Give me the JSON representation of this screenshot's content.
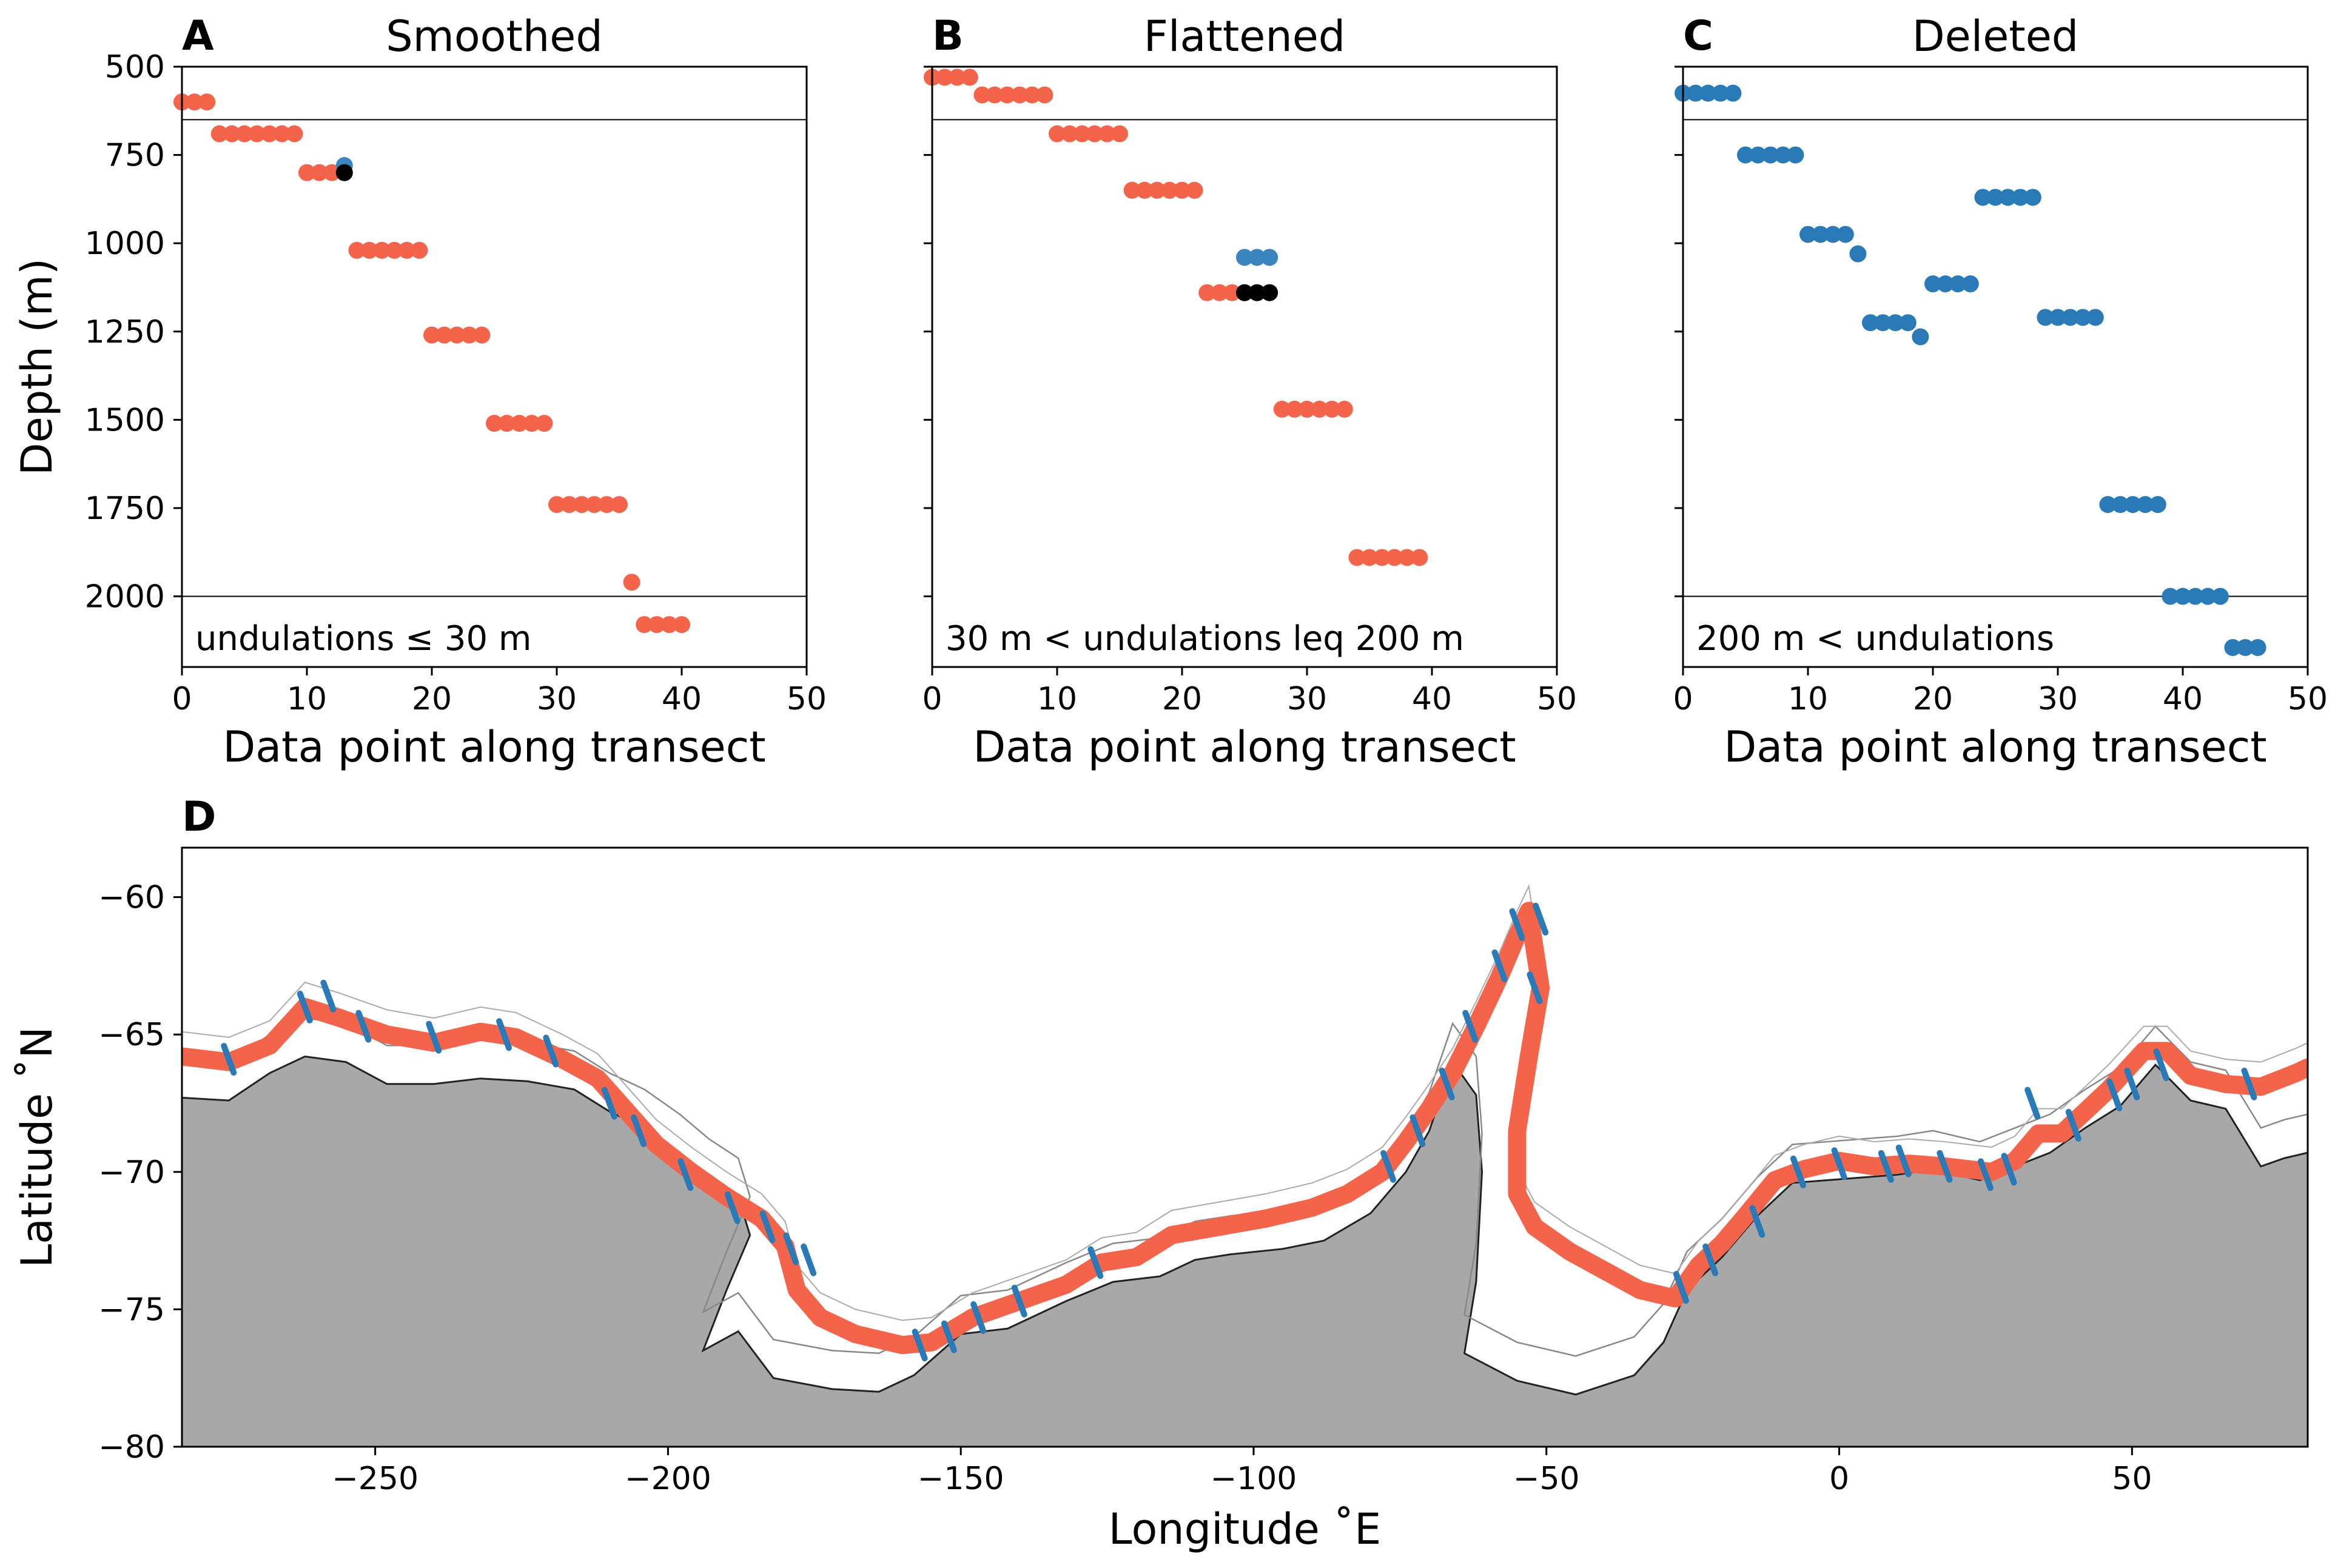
{
  "panels": [
    {
      "letter": "A",
      "title": "Smoothed",
      "annotation": "undulations ≤  30 m",
      "xlabel": "Data point along transect",
      "ylabel": "Depth (m)",
      "xlim": [
        0,
        50
      ],
      "ylim": [
        2200,
        500
      ],
      "xticks": [
        0,
        10,
        20,
        30,
        40,
        50
      ],
      "yticks": [
        500,
        750,
        1000,
        1250,
        1500,
        1750,
        2000
      ],
      "hlines": [
        650,
        2000
      ],
      "series": [
        {
          "color": "#f4644b",
          "points": [
            [
              0,
              600
            ],
            [
              1,
              600
            ],
            [
              2,
              600
            ],
            [
              3,
              690
            ],
            [
              4,
              690
            ],
            [
              5,
              690
            ],
            [
              6,
              690
            ],
            [
              7,
              690
            ],
            [
              8,
              690
            ],
            [
              9,
              690
            ],
            [
              10,
              800
            ],
            [
              11,
              800
            ],
            [
              12,
              800
            ],
            [
              13,
              800
            ],
            [
              14,
              1020
            ],
            [
              15,
              1020
            ],
            [
              16,
              1020
            ],
            [
              17,
              1020
            ],
            [
              18,
              1020
            ],
            [
              19,
              1020
            ],
            [
              20,
              1260
            ],
            [
              21,
              1260
            ],
            [
              22,
              1260
            ],
            [
              23,
              1260
            ],
            [
              24,
              1260
            ],
            [
              25,
              1510
            ],
            [
              26,
              1510
            ],
            [
              27,
              1510
            ],
            [
              28,
              1510
            ],
            [
              29,
              1510
            ],
            [
              30,
              1740
            ],
            [
              31,
              1740
            ],
            [
              32,
              1740
            ],
            [
              33,
              1740
            ],
            [
              34,
              1740
            ],
            [
              35,
              1740
            ],
            [
              36,
              1960
            ],
            [
              37,
              2080
            ],
            [
              38,
              2080
            ],
            [
              39,
              2080
            ],
            [
              40,
              2080
            ]
          ]
        },
        {
          "color": "#3a85c0",
          "points": [
            [
              13,
              780
            ]
          ]
        },
        {
          "color": "#000000",
          "points": [
            [
              13,
              800
            ]
          ]
        }
      ]
    },
    {
      "letter": "B",
      "title": "Flattened",
      "annotation": "30 m < undulations leq 200 m",
      "xlabel": "Data point along transect",
      "ylabel": "",
      "xlim": [
        0,
        50
      ],
      "ylim": [
        2200,
        500
      ],
      "xticks": [
        0,
        10,
        20,
        30,
        40,
        50
      ],
      "yticks": [
        500,
        750,
        1000,
        1250,
        1500,
        1750,
        2000
      ],
      "hlines": [
        650
      ],
      "series": [
        {
          "color": "#f4644b",
          "points": [
            [
              0,
              530
            ],
            [
              1,
              530
            ],
            [
              2,
              530
            ],
            [
              3,
              530
            ],
            [
              4,
              580
            ],
            [
              5,
              580
            ],
            [
              6,
              580
            ],
            [
              7,
              580
            ],
            [
              8,
              580
            ],
            [
              9,
              580
            ],
            [
              10,
              690
            ],
            [
              11,
              690
            ],
            [
              12,
              690
            ],
            [
              13,
              690
            ],
            [
              14,
              690
            ],
            [
              15,
              690
            ],
            [
              16,
              850
            ],
            [
              17,
              850
            ],
            [
              18,
              850
            ],
            [
              19,
              850
            ],
            [
              20,
              850
            ],
            [
              21,
              850
            ],
            [
              22,
              1140
            ],
            [
              23,
              1140
            ],
            [
              24,
              1140
            ],
            [
              28,
              1470
            ],
            [
              29,
              1470
            ],
            [
              30,
              1470
            ],
            [
              31,
              1470
            ],
            [
              32,
              1470
            ],
            [
              33,
              1470
            ],
            [
              34,
              1890
            ],
            [
              35,
              1890
            ],
            [
              36,
              1890
            ],
            [
              37,
              1890
            ],
            [
              38,
              1890
            ],
            [
              39,
              1890
            ]
          ]
        },
        {
          "color": "#3a85c0",
          "points": [
            [
              25,
              1040
            ],
            [
              26,
              1040
            ],
            [
              27,
              1040
            ]
          ]
        },
        {
          "color": "#000000",
          "points": [
            [
              25,
              1140
            ],
            [
              26,
              1140
            ],
            [
              27,
              1140
            ]
          ]
        }
      ]
    },
    {
      "letter": "C",
      "title": "Deleted",
      "annotation": "200 m < undulations",
      "xlabel": "Data point along transect",
      "ylabel": "",
      "xlim": [
        0,
        50
      ],
      "ylim": [
        2200,
        500
      ],
      "xticks": [
        0,
        10,
        20,
        30,
        40,
        50
      ],
      "yticks": [
        500,
        750,
        1000,
        1250,
        1500,
        1750,
        2000
      ],
      "hlines": [
        650,
        2000
      ],
      "series": [
        {
          "color": "#2a7ab8",
          "points": [
            [
              0,
              575
            ],
            [
              1,
              575
            ],
            [
              2,
              575
            ],
            [
              3,
              575
            ],
            [
              4,
              575
            ],
            [
              5,
              750
            ],
            [
              6,
              750
            ],
            [
              7,
              750
            ],
            [
              8,
              750
            ],
            [
              9,
              750
            ],
            [
              10,
              975
            ],
            [
              11,
              975
            ],
            [
              12,
              975
            ],
            [
              13,
              975
            ],
            [
              14,
              1030
            ],
            [
              15,
              1225
            ],
            [
              16,
              1225
            ],
            [
              17,
              1225
            ],
            [
              18,
              1225
            ],
            [
              19,
              1265
            ],
            [
              20,
              1115
            ],
            [
              21,
              1115
            ],
            [
              22,
              1115
            ],
            [
              23,
              1115
            ],
            [
              24,
              870
            ],
            [
              25,
              870
            ],
            [
              26,
              870
            ],
            [
              27,
              870
            ],
            [
              28,
              870
            ],
            [
              29,
              1210
            ],
            [
              30,
              1210
            ],
            [
              31,
              1210
            ],
            [
              32,
              1210
            ],
            [
              33,
              1210
            ],
            [
              34,
              1740
            ],
            [
              35,
              1740
            ],
            [
              36,
              1740
            ],
            [
              37,
              1740
            ],
            [
              38,
              1740
            ],
            [
              39,
              2000
            ],
            [
              40,
              2000
            ],
            [
              41,
              2000
            ],
            [
              42,
              2000
            ],
            [
              43,
              2000
            ],
            [
              44,
              2145
            ],
            [
              45,
              2145
            ],
            [
              46,
              2145
            ]
          ]
        }
      ]
    }
  ],
  "map": {
    "letter": "D",
    "xlabel": "Longitude ˚E",
    "ylabel": "Latitude ˚N",
    "xlim": [
      -283,
      80
    ],
    "ylim": [
      -80,
      -58.2
    ],
    "xticks": [
      -250,
      -200,
      -150,
      -100,
      -50,
      0,
      50
    ],
    "yticks": [
      -60,
      -65,
      -70,
      -75,
      -80
    ],
    "land_color": "#a8a8a8",
    "slope_color": "#f4644b",
    "transect_color": "#2a7ab8",
    "coast": [
      [
        -283,
        -67.3
      ],
      [
        -275,
        -67.4
      ],
      [
        -268,
        -66.4
      ],
      [
        -262,
        -65.8
      ],
      [
        -255,
        -66.0
      ],
      [
        -248,
        -66.8
      ],
      [
        -240,
        -66.8
      ],
      [
        -232,
        -66.6
      ],
      [
        -224,
        -66.7
      ],
      [
        -216,
        -67.0
      ],
      [
        -210,
        -67.8
      ],
      [
        -204,
        -68.4
      ],
      [
        -198,
        -69.3
      ],
      [
        -193,
        -70.2
      ],
      [
        -188,
        -70.9
      ],
      [
        -186,
        -72.3
      ],
      [
        -190,
        -74.3
      ],
      [
        -194,
        -76.5
      ],
      [
        -188,
        -75.8
      ],
      [
        -182,
        -77.5
      ],
      [
        -172,
        -77.9
      ],
      [
        -164,
        -78.0
      ],
      [
        -158,
        -77.4
      ],
      [
        -150,
        -75.9
      ],
      [
        -142,
        -75.7
      ],
      [
        -132,
        -74.7
      ],
      [
        -124,
        -74.0
      ],
      [
        -116,
        -73.8
      ],
      [
        -110,
        -73.2
      ],
      [
        -104,
        -73.0
      ],
      [
        -95,
        -72.8
      ],
      [
        -88,
        -72.5
      ],
      [
        -80,
        -71.5
      ],
      [
        -74,
        -70.0
      ],
      [
        -70,
        -68.5
      ],
      [
        -66,
        -66.0
      ],
      [
        -62,
        -67.2
      ],
      [
        -61,
        -70.0
      ],
      [
        -62,
        -74.0
      ],
      [
        -64,
        -76.6
      ],
      [
        -55,
        -77.6
      ],
      [
        -45,
        -78.1
      ],
      [
        -35,
        -77.4
      ],
      [
        -30,
        -76.2
      ],
      [
        -26,
        -74.3
      ],
      [
        -20,
        -73.1
      ],
      [
        -14,
        -71.6
      ],
      [
        -8,
        -70.4
      ],
      [
        -2,
        -70.3
      ],
      [
        4,
        -70.2
      ],
      [
        10,
        -70.1
      ],
      [
        16,
        -69.9
      ],
      [
        24,
        -70.3
      ],
      [
        30,
        -69.8
      ],
      [
        36,
        -69.3
      ],
      [
        42,
        -68.4
      ],
      [
        48,
        -67.6
      ],
      [
        54,
        -66.1
      ],
      [
        60,
        -67.4
      ],
      [
        66,
        -67.7
      ],
      [
        72,
        -69.8
      ],
      [
        76,
        -69.5
      ],
      [
        80,
        -69.3
      ]
    ],
    "slope_line": [
      [
        -283,
        -65.8
      ],
      [
        -275,
        -66.0
      ],
      [
        -268,
        -65.4
      ],
      [
        -262,
        -64.0
      ],
      [
        -256,
        -64.4
      ],
      [
        -248,
        -65.0
      ],
      [
        -240,
        -65.3
      ],
      [
        -232,
        -64.9
      ],
      [
        -226,
        -65.1
      ],
      [
        -218,
        -65.9
      ],
      [
        -212,
        -66.6
      ],
      [
        -207,
        -67.8
      ],
      [
        -202,
        -69.0
      ],
      [
        -196,
        -70.0
      ],
      [
        -190,
        -70.9
      ],
      [
        -184,
        -71.7
      ],
      [
        -180,
        -72.7
      ],
      [
        -178,
        -74.3
      ],
      [
        -174,
        -75.3
      ],
      [
        -168,
        -75.9
      ],
      [
        -160,
        -76.3
      ],
      [
        -155,
        -76.2
      ],
      [
        -148,
        -75.3
      ],
      [
        -140,
        -74.7
      ],
      [
        -132,
        -74.1
      ],
      [
        -126,
        -73.3
      ],
      [
        -120,
        -73.1
      ],
      [
        -114,
        -72.3
      ],
      [
        -106,
        -72.0
      ],
      [
        -98,
        -71.7
      ],
      [
        -90,
        -71.3
      ],
      [
        -84,
        -70.8
      ],
      [
        -78,
        -70.0
      ],
      [
        -74,
        -68.9
      ],
      [
        -70,
        -67.7
      ],
      [
        -66,
        -66.4
      ],
      [
        -62,
        -64.7
      ],
      [
        -58,
        -62.9
      ],
      [
        -55,
        -61.4
      ],
      [
        -53,
        -60.5
      ],
      [
        -51,
        -63.3
      ],
      [
        -53,
        -65.8
      ],
      [
        -55,
        -68.5
      ],
      [
        -55,
        -70.8
      ],
      [
        -52,
        -72.0
      ],
      [
        -46,
        -72.9
      ],
      [
        -40,
        -73.6
      ],
      [
        -34,
        -74.3
      ],
      [
        -28,
        -74.6
      ],
      [
        -24,
        -73.4
      ],
      [
        -20,
        -72.6
      ],
      [
        -16,
        -71.6
      ],
      [
        -11,
        -70.3
      ],
      [
        -6,
        -69.9
      ],
      [
        0,
        -69.6
      ],
      [
        6,
        -69.8
      ],
      [
        12,
        -69.7
      ],
      [
        18,
        -69.8
      ],
      [
        22,
        -69.9
      ],
      [
        26,
        -70.0
      ],
      [
        30,
        -69.6
      ],
      [
        34,
        -68.6
      ],
      [
        38,
        -68.6
      ],
      [
        42,
        -67.8
      ],
      [
        46,
        -67.0
      ],
      [
        52,
        -65.6
      ],
      [
        56,
        -65.6
      ],
      [
        60,
        -66.5
      ],
      [
        66,
        -66.8
      ],
      [
        72,
        -66.9
      ],
      [
        78,
        -66.4
      ],
      [
        80,
        -66.2
      ]
    ],
    "transects": [
      [
        -275,
        -65.9
      ],
      [
        -262,
        -64.0
      ],
      [
        -258,
        -63.6
      ],
      [
        -252,
        -64.7
      ],
      [
        -240,
        -65.1
      ],
      [
        -228,
        -65.0
      ],
      [
        -220,
        -65.6
      ],
      [
        -210,
        -67.5
      ],
      [
        -205,
        -68.5
      ],
      [
        -197,
        -70.1
      ],
      [
        -189,
        -71.3
      ],
      [
        -183,
        -72.0
      ],
      [
        -179,
        -72.8
      ],
      [
        -176,
        -73.2
      ],
      [
        -157,
        -76.3
      ],
      [
        -152,
        -76.0
      ],
      [
        -147,
        -75.3
      ],
      [
        -140,
        -74.7
      ],
      [
        -127,
        -73.3
      ],
      [
        -77,
        -69.8
      ],
      [
        -72,
        -68.5
      ],
      [
        -67,
        -66.8
      ],
      [
        -63,
        -64.7
      ],
      [
        -58,
        -62.5
      ],
      [
        -55,
        -61.0
      ],
      [
        -51,
        -60.8
      ],
      [
        -52,
        -63.3
      ],
      [
        -27,
        -74.2
      ],
      [
        -22,
        -73.2
      ],
      [
        -14,
        -71.8
      ],
      [
        -7,
        -70.0
      ],
      [
        0,
        -69.7
      ],
      [
        8,
        -69.8
      ],
      [
        11,
        -69.6
      ],
      [
        18,
        -69.8
      ],
      [
        25,
        -70.1
      ],
      [
        29,
        -69.9
      ],
      [
        33,
        -67.5
      ],
      [
        40,
        -68.3
      ],
      [
        47,
        -67.2
      ],
      [
        50,
        -66.8
      ],
      [
        55,
        -66.1
      ],
      [
        70,
        -66.8
      ]
    ]
  }
}
